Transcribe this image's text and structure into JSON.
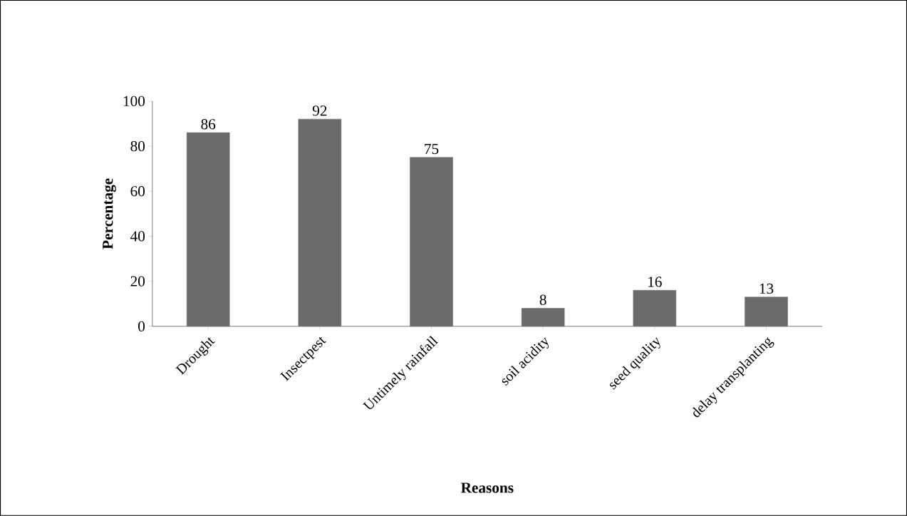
{
  "chart_data": {
    "type": "bar",
    "xlabel": "Reasons",
    "ylabel": "Percentage",
    "categories": [
      "Drought",
      "Insectpest",
      "Untimely rainfall",
      "soil acidity",
      "seed quality",
      "delay transplanting"
    ],
    "values": [
      86,
      92,
      75,
      8,
      16,
      13
    ],
    "color": "#6b6b6b",
    "ylim": [
      0,
      100
    ],
    "yticks": [
      0,
      20,
      40,
      60,
      80,
      100
    ],
    "data_labels": true
  }
}
